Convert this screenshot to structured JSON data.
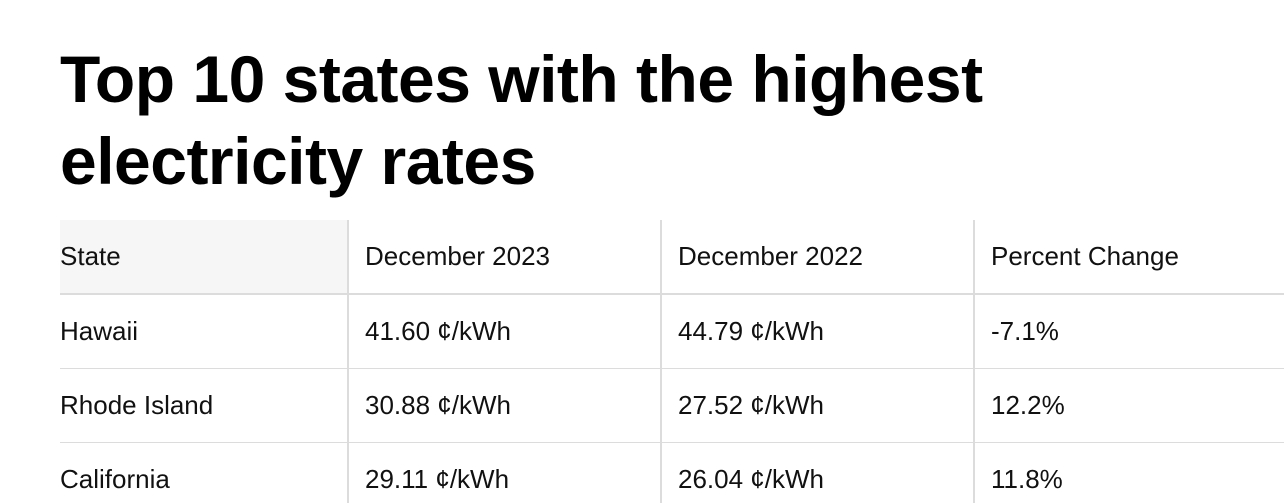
{
  "title": "Top 10 states with the highest electricity rates",
  "table": {
    "headers": [
      "State",
      "December 2023",
      "December 2022",
      "Percent Change"
    ],
    "rows": [
      [
        "Hawaii",
        "41.60 ¢/kWh",
        "44.79 ¢/kWh",
        "-7.1%"
      ],
      [
        "Rhode Island",
        "30.88 ¢/kWh",
        "27.52 ¢/kWh",
        "12.2%"
      ],
      [
        "California",
        "29.11 ¢/kWh",
        "26.04 ¢/kWh",
        "11.8%"
      ]
    ]
  }
}
